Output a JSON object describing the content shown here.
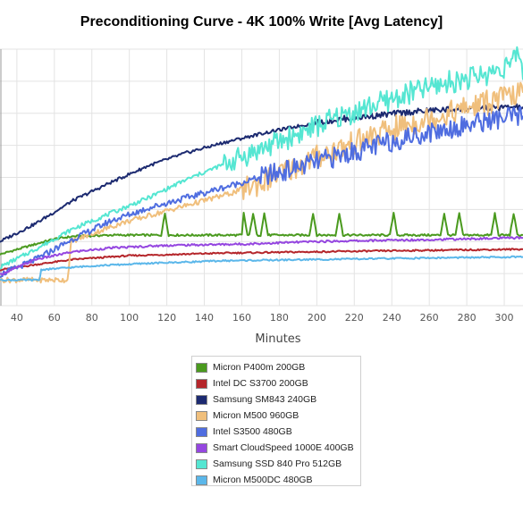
{
  "chart_data": {
    "type": "line",
    "title": "Preconditioning Curve - 4K 100% Write [Avg Latency]",
    "xlabel": "Minutes",
    "ylabel": "",
    "x_ticks": [
      40,
      60,
      80,
      100,
      120,
      140,
      160,
      180,
      200,
      220,
      240,
      260,
      280,
      300
    ],
    "xlim": [
      31,
      310
    ],
    "ylim": [
      0,
      100
    ],
    "grid": true,
    "legend_position": "bottom",
    "series": [
      {
        "name": "Micron P400m 200GB",
        "color": "#4a9a1e",
        "points": [
          [
            31,
            20
          ],
          [
            50,
            24
          ],
          [
            60,
            26
          ],
          [
            70,
            27
          ],
          [
            90,
            27.5
          ],
          [
            117,
            27.5
          ],
          [
            119,
            36
          ],
          [
            121,
            27.5
          ],
          [
            160,
            27.5
          ],
          [
            161,
            36
          ],
          [
            163,
            27.5
          ],
          [
            164,
            27.5
          ],
          [
            166,
            36
          ],
          [
            168,
            27.5
          ],
          [
            170,
            27.5
          ],
          [
            172,
            36
          ],
          [
            174,
            27.5
          ],
          [
            196,
            27.5
          ],
          [
            198,
            36
          ],
          [
            200,
            27.5
          ],
          [
            210,
            27.5
          ],
          [
            212,
            36
          ],
          [
            214,
            27.5
          ],
          [
            239,
            27.5
          ],
          [
            241,
            36
          ],
          [
            243,
            27.5
          ],
          [
            266,
            27.5
          ],
          [
            268,
            36
          ],
          [
            270,
            27.5
          ],
          [
            274,
            27.5
          ],
          [
            276,
            36
          ],
          [
            278,
            27.5
          ],
          [
            293,
            27.5
          ],
          [
            295,
            36
          ],
          [
            297,
            27.5
          ],
          [
            303,
            27.5
          ],
          [
            305,
            36
          ],
          [
            307,
            27.5
          ],
          [
            310,
            27.5
          ]
        ]
      },
      {
        "name": "Intel DC S3700 200GB",
        "color": "#b5262b",
        "points": [
          [
            31,
            14
          ],
          [
            50,
            16
          ],
          [
            70,
            18
          ],
          [
            100,
            19.5
          ],
          [
            150,
            20.5
          ],
          [
            200,
            21
          ],
          [
            250,
            21.5
          ],
          [
            310,
            22
          ]
        ]
      },
      {
        "name": "Samsung SM843 240GB",
        "color": "#1c2a70",
        "points": [
          [
            31,
            25
          ],
          [
            50,
            32
          ],
          [
            70,
            41
          ],
          [
            90,
            48
          ],
          [
            110,
            54.5
          ],
          [
            130,
            59.5
          ],
          [
            150,
            63.5
          ],
          [
            170,
            67
          ],
          [
            190,
            70
          ],
          [
            210,
            72.5
          ],
          [
            230,
            74
          ],
          [
            250,
            75.5
          ],
          [
            270,
            76.5
          ],
          [
            290,
            77
          ],
          [
            310,
            77.5
          ]
        ]
      },
      {
        "name": "Micron M500 960GB",
        "color": "#f0bf7c",
        "points": [
          [
            31,
            10
          ],
          [
            62,
            10
          ],
          [
            67,
            10
          ],
          [
            69,
            25
          ],
          [
            80,
            28
          ],
          [
            95,
            32
          ],
          [
            110,
            35
          ],
          [
            125,
            38
          ],
          [
            140,
            41
          ],
          [
            155,
            44
          ],
          [
            170,
            48
          ],
          [
            185,
            53
          ],
          [
            200,
            58
          ],
          [
            215,
            62
          ],
          [
            230,
            66
          ],
          [
            245,
            70
          ],
          [
            260,
            73
          ],
          [
            275,
            76
          ],
          [
            290,
            79
          ],
          [
            300,
            81
          ],
          [
            310,
            83
          ]
        ]
      },
      {
        "name": "Intel S3500 480GB",
        "color": "#4f6de0",
        "points": [
          [
            31,
            12
          ],
          [
            50,
            18
          ],
          [
            70,
            26
          ],
          [
            90,
            33
          ],
          [
            110,
            38
          ],
          [
            130,
            42
          ],
          [
            150,
            46
          ],
          [
            170,
            50
          ],
          [
            190,
            54
          ],
          [
            210,
            58
          ],
          [
            230,
            62
          ],
          [
            250,
            66
          ],
          [
            270,
            69
          ],
          [
            290,
            72
          ],
          [
            310,
            74
          ]
        ]
      },
      {
        "name": "Smart CloudSpeed 1000E 400GB",
        "color": "#9546e0",
        "points": [
          [
            31,
            12
          ],
          [
            50,
            18
          ],
          [
            70,
            21
          ],
          [
            90,
            22.5
          ],
          [
            120,
            23.5
          ],
          [
            160,
            24
          ],
          [
            200,
            25
          ],
          [
            240,
            25.5
          ],
          [
            280,
            26
          ],
          [
            310,
            26.5
          ]
        ]
      },
      {
        "name": "Samsung SSD 840 Pro 512GB",
        "color": "#55e6d2",
        "points": [
          [
            31,
            15
          ],
          [
            50,
            22
          ],
          [
            70,
            30
          ],
          [
            90,
            36
          ],
          [
            110,
            42
          ],
          [
            130,
            49
          ],
          [
            150,
            55
          ],
          [
            170,
            61
          ],
          [
            190,
            67
          ],
          [
            210,
            73
          ],
          [
            230,
            78
          ],
          [
            250,
            83
          ],
          [
            270,
            87
          ],
          [
            290,
            90
          ],
          [
            305,
            95
          ],
          [
            308,
            100
          ],
          [
            310,
            88
          ]
        ]
      },
      {
        "name": "Micron M500DC 480GB",
        "color": "#5bb7ea",
        "points": [
          [
            31,
            10
          ],
          [
            52,
            10
          ],
          [
            53,
            14
          ],
          [
            80,
            15.5
          ],
          [
            110,
            16.5
          ],
          [
            150,
            17.5
          ],
          [
            200,
            18
          ],
          [
            250,
            18.5
          ],
          [
            310,
            19
          ]
        ]
      }
    ]
  }
}
